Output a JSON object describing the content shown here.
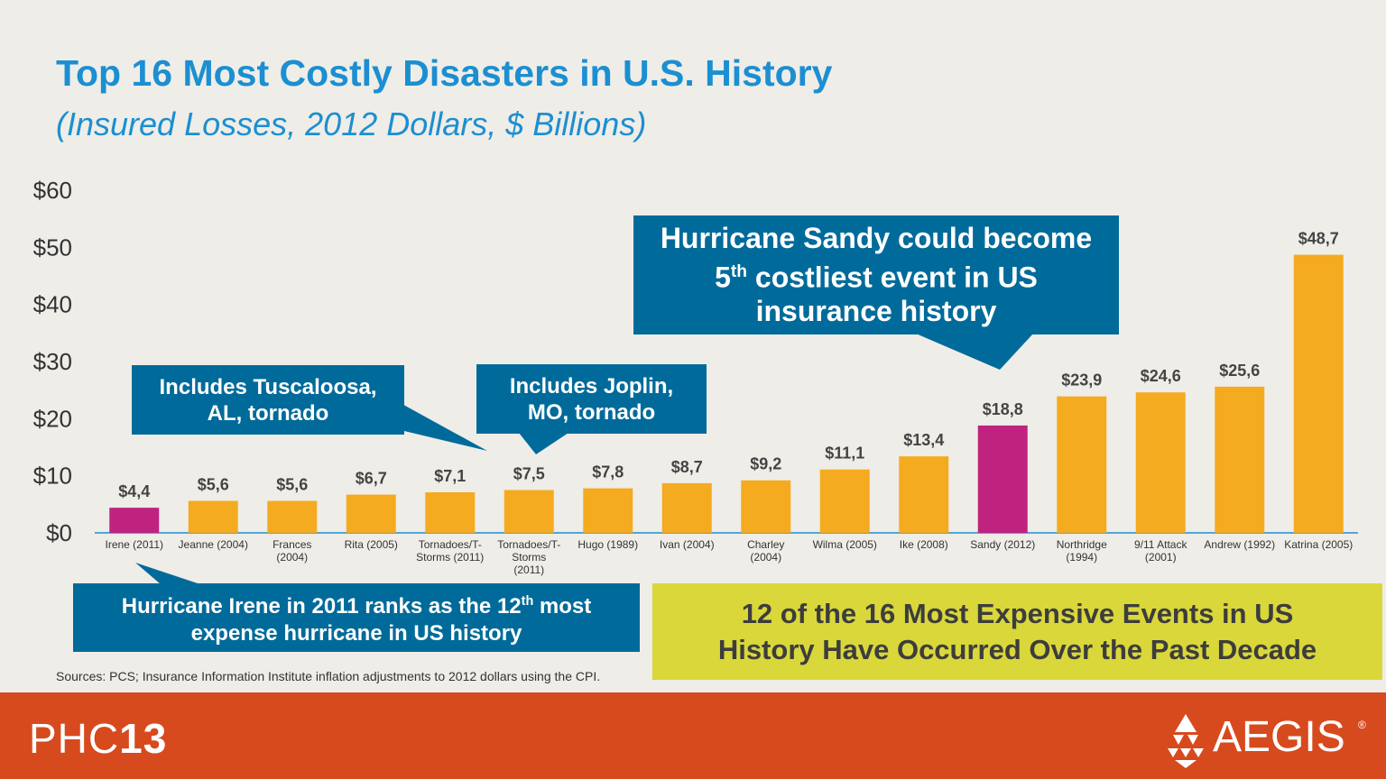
{
  "title": "Top 16 Most Costly Disasters in U.S. History",
  "subtitle": "(Insured Losses, 2012 Dollars, $ Billions)",
  "colors": {
    "bar": "#f5ab20",
    "highlight": "#c0237f",
    "callout": "#006b9a",
    "decade_box": "#d9d73a",
    "footer": "#d74a1e",
    "title": "#1b8fd1"
  },
  "chart_data": {
    "type": "bar",
    "categories": [
      "Irene (2011)",
      "Jeanne (2004)",
      "Frances (2004)",
      "Rita (2005)",
      "Tornadoes/T-Storms (2011)",
      "Tornadoes/T-Storms (2011)",
      "Hugo (1989)",
      "Ivan (2004)",
      "Charley (2004)",
      "Wilma (2005)",
      "Ike (2008)",
      "Sandy (2012)",
      "Northridge (1994)",
      "9/11 Attack (2001)",
      "Andrew (1992)",
      "Katrina (2005)"
    ],
    "category_lines": [
      [
        "Irene (2011)"
      ],
      [
        "Jeanne (2004)"
      ],
      [
        "Frances",
        "(2004)"
      ],
      [
        "Rita (2005)"
      ],
      [
        "Tornadoes/T-",
        "Storms (2011)"
      ],
      [
        "Tornadoes/T-",
        "Storms",
        "(2011)"
      ],
      [
        "Hugo (1989)"
      ],
      [
        "Ivan (2004)"
      ],
      [
        "Charley",
        "(2004)"
      ],
      [
        "Wilma (2005)"
      ],
      [
        "Ike (2008)"
      ],
      [
        "Sandy (2012)"
      ],
      [
        "Northridge",
        "(1994)"
      ],
      [
        "9/11 Attack",
        "(2001)"
      ],
      [
        "Andrew (1992)"
      ],
      [
        "Katrina (2005)"
      ]
    ],
    "values": [
      4.4,
      5.6,
      5.6,
      6.7,
      7.1,
      7.5,
      7.8,
      8.7,
      9.2,
      11.1,
      13.4,
      18.8,
      23.9,
      24.6,
      25.6,
      48.7
    ],
    "value_labels": [
      "$4,4",
      "$5,6",
      "$5,6",
      "$6,7",
      "$7,1",
      "$7,5",
      "$7,8",
      "$8,7",
      "$9,2",
      "$11,1",
      "$13,4",
      "$18,8",
      "$23,9",
      "$24,6",
      "$25,6",
      "$48,7"
    ],
    "highlight": [
      "Irene (2011)",
      "Sandy (2012)"
    ],
    "yticks": [
      "$0",
      "$10",
      "$20",
      "$30",
      "$40",
      "$50",
      "$60"
    ],
    "ylim": [
      0,
      60
    ],
    "grid": false
  },
  "callouts": {
    "sandy_line1": "Hurricane Sandy could become",
    "sandy_num": "5",
    "sandy_sup": "th",
    "sandy_rest": " costliest event in US",
    "sandy_line3": "insurance history",
    "tusc_line1": "Includes Tuscaloosa,",
    "tusc_line2": "AL, tornado",
    "joplin_line1": "Includes Joplin,",
    "joplin_line2": "MO, tornado",
    "irene_line1a": "Hurricane Irene in 2011 ranks as the 12",
    "irene_sup": "th",
    "irene_line1b": " most",
    "irene_line2": "expense hurricane in US history",
    "decade_line1": "12 of the 16 Most Expensive Events in US",
    "decade_line2": "History Have Occurred Over the Past Decade"
  },
  "sources": "Sources: PCS; Insurance Information Institute inflation adjustments to 2012 dollars using the CPI.",
  "footer": {
    "brand_light": "PHC",
    "brand_bold": "13",
    "logo_text": "AEGIS",
    "reg_mark": "®",
    "logo_icon": "aegis-triangle-icon"
  }
}
